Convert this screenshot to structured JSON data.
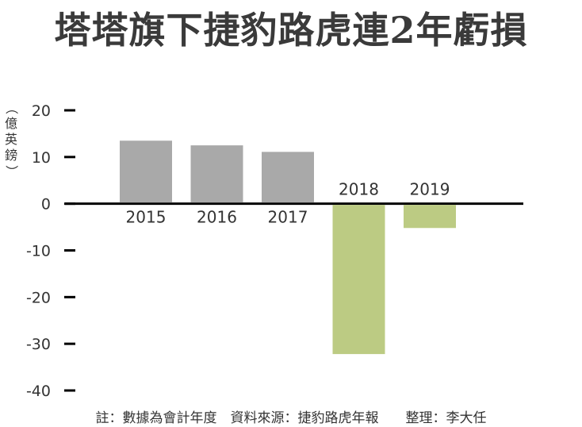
{
  "title": "塔塔旗下捷豹路虎連2年虧損",
  "unit_label": "（億英鎊）",
  "footnote": "註：數據為會計年度　資料來源：捷豹路虎年報　　整理：李大任",
  "colors": {
    "profit": "#a9a9a9",
    "loss": "#bccb83",
    "axis": "#000000",
    "text": "#333333"
  },
  "chart_data": {
    "type": "bar",
    "title": "塔塔旗下捷豹路虎連2年虧損",
    "ylabel": "億英鎊",
    "xlabel": "",
    "categories": [
      "2015",
      "2016",
      "2017",
      "2018",
      "2019"
    ],
    "values": [
      13.5,
      12.5,
      11.1,
      -32.2,
      -5.2
    ],
    "ylim": [
      -40,
      20
    ],
    "yticks": [
      "20",
      "10",
      "0",
      "-10",
      "-20",
      "-30",
      "-40"
    ],
    "grid": false,
    "legend": "none"
  }
}
